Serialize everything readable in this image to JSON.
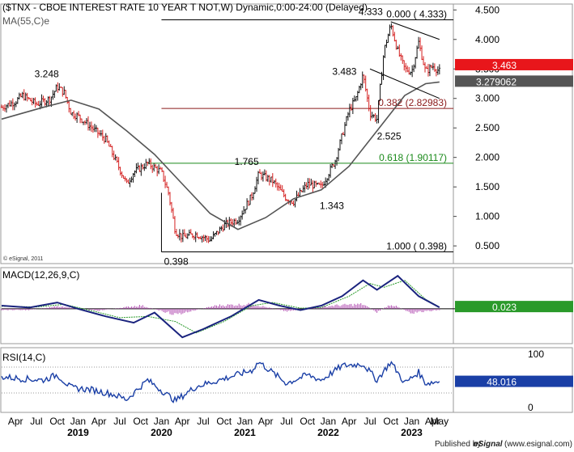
{
  "header": {
    "title": "($TNX - CBOE INTEREST RATE 10 YEAR T NOT,W) Dynamic,0:00-24:00 (Delayed)",
    "ma_label": "MA(55,C)e",
    "copyright": "© eSignal, 2011"
  },
  "footer": {
    "published_by": "Published by",
    "brand": "eSignal",
    "site": "(www.esignal.com)"
  },
  "chart_data": [
    {
      "type": "candlestick",
      "panel": "price",
      "title": "($TNX - CBOE INTEREST RATE 10 YEAR T NOT,W) Dynamic,0:00-24:00 (Delayed)",
      "ylim": [
        0.2,
        4.6
      ],
      "y_ticks": [
        "4.500",
        "4.000",
        "3.500",
        "3.000",
        "2.500",
        "2.000",
        "1.500",
        "1.000",
        "0.500"
      ],
      "y_tick_values": [
        4.5,
        4.0,
        3.5,
        3.0,
        2.5,
        2.0,
        1.5,
        1.0,
        0.5
      ],
      "x_labels": [
        "Apr",
        "Jul",
        "Oct",
        "Jan",
        "Apr",
        "Jul",
        "Oct",
        "Jan",
        "Apr",
        "Jul",
        "Oct",
        "Jan",
        "Apr",
        "Jul",
        "Oct",
        "Jan",
        "Apr",
        "Jul",
        "Oct",
        "Jan",
        "Apr",
        "May"
      ],
      "x_label_dates": [
        "2018-04",
        "2018-07",
        "2018-10",
        "2019-01",
        "2019-04",
        "2019-07",
        "2019-10",
        "2020-01",
        "2020-04",
        "2020-07",
        "2020-10",
        "2021-01",
        "2021-04",
        "2021-07",
        "2021-10",
        "2022-01",
        "2022-04",
        "2022-07",
        "2022-10",
        "2023-01",
        "2023-04",
        "2023-05"
      ],
      "years": [
        "2019",
        "2020",
        "2021",
        "2022",
        "2023"
      ],
      "year_dates": [
        "2019-01",
        "2020-01",
        "2021-01",
        "2022-01",
        "2023-01"
      ],
      "x_range": [
        "2018-02",
        "2023-07"
      ],
      "close_path": [
        {
          "t": "2018-02",
          "v": 2.85
        },
        {
          "t": "2018-04",
          "v": 2.95
        },
        {
          "t": "2018-05",
          "v": 3.05
        },
        {
          "t": "2018-07",
          "v": 2.9
        },
        {
          "t": "2018-09",
          "v": 3.0
        },
        {
          "t": "2018-10",
          "v": 3.2
        },
        {
          "t": "2018-11",
          "v": 3.1
        },
        {
          "t": "2018-12",
          "v": 2.75
        },
        {
          "t": "2019-01",
          "v": 2.7
        },
        {
          "t": "2019-03",
          "v": 2.5
        },
        {
          "t": "2019-05",
          "v": 2.3
        },
        {
          "t": "2019-06",
          "v": 2.05
        },
        {
          "t": "2019-08",
          "v": 1.55
        },
        {
          "t": "2019-09",
          "v": 1.75
        },
        {
          "t": "2019-11",
          "v": 1.9
        },
        {
          "t": "2020-01",
          "v": 1.75
        },
        {
          "t": "2020-02",
          "v": 1.4
        },
        {
          "t": "2020-03",
          "v": 0.75
        },
        {
          "t": "2020-04",
          "v": 0.65
        },
        {
          "t": "2020-06",
          "v": 0.7
        },
        {
          "t": "2020-08",
          "v": 0.6
        },
        {
          "t": "2020-10",
          "v": 0.85
        },
        {
          "t": "2020-12",
          "v": 0.95
        },
        {
          "t": "2021-02",
          "v": 1.35
        },
        {
          "t": "2021-03",
          "v": 1.72
        },
        {
          "t": "2021-05",
          "v": 1.6
        },
        {
          "t": "2021-07",
          "v": 1.3
        },
        {
          "t": "2021-08",
          "v": 1.25
        },
        {
          "t": "2021-10",
          "v": 1.55
        },
        {
          "t": "2021-12",
          "v": 1.5
        },
        {
          "t": "2022-02",
          "v": 1.95
        },
        {
          "t": "2022-04",
          "v": 2.8
        },
        {
          "t": "2022-05",
          "v": 3.0
        },
        {
          "t": "2022-06",
          "v": 3.4
        },
        {
          "t": "2022-07",
          "v": 2.75
        },
        {
          "t": "2022-08",
          "v": 2.65
        },
        {
          "t": "2022-09",
          "v": 3.8
        },
        {
          "t": "2022-10",
          "v": 4.25
        },
        {
          "t": "2022-11",
          "v": 3.8
        },
        {
          "t": "2022-12",
          "v": 3.5
        },
        {
          "t": "2023-01",
          "v": 3.45
        },
        {
          "t": "2023-02",
          "v": 3.95
        },
        {
          "t": "2023-03",
          "v": 3.45
        },
        {
          "t": "2023-04",
          "v": 3.55
        },
        {
          "t": "2023-05",
          "v": 3.46
        }
      ],
      "ma_path": [
        {
          "t": "2018-02",
          "v": 2.65
        },
        {
          "t": "2018-08",
          "v": 2.85
        },
        {
          "t": "2018-12",
          "v": 2.97
        },
        {
          "t": "2019-04",
          "v": 2.82
        },
        {
          "t": "2019-08",
          "v": 2.45
        },
        {
          "t": "2019-12",
          "v": 2.05
        },
        {
          "t": "2020-04",
          "v": 1.55
        },
        {
          "t": "2020-08",
          "v": 1.05
        },
        {
          "t": "2020-12",
          "v": 0.78
        },
        {
          "t": "2021-04",
          "v": 0.98
        },
        {
          "t": "2021-08",
          "v": 1.3
        },
        {
          "t": "2021-12",
          "v": 1.45
        },
        {
          "t": "2022-04",
          "v": 1.85
        },
        {
          "t": "2022-08",
          "v": 2.45
        },
        {
          "t": "2022-12",
          "v": 3.05
        },
        {
          "t": "2023-03",
          "v": 3.25
        },
        {
          "t": "2023-05",
          "v": 3.279062
        }
      ],
      "fib_lines": [
        {
          "label": "0.000 ( 4.333)",
          "value": 4.333,
          "color": "#000000",
          "from": "2020-01"
        },
        {
          "label": "0.382 (2.82983)",
          "value": 2.82983,
          "color": "#8b1a1a",
          "from": "2020-01"
        },
        {
          "label": "0.618 (1.90117)",
          "value": 1.90117,
          "color": "#1a8a1a",
          "from": "2019-11"
        },
        {
          "label": "1.000 ( 0.398)",
          "value": 0.398,
          "color": "#000000",
          "from": "2020-01"
        }
      ],
      "annotations": [
        {
          "text": "3.248",
          "t": "2018-10",
          "v": 3.248
        },
        {
          "text": "0.398",
          "t": "2020-03",
          "v": 0.398
        },
        {
          "text": "1.765",
          "t": "2021-03",
          "v": 1.765
        },
        {
          "text": "1.343",
          "t": "2021-12",
          "v": 1.343
        },
        {
          "text": "3.483",
          "t": "2022-06",
          "v": 3.483
        },
        {
          "text": "2.525",
          "t": "2022-08",
          "v": 2.525
        },
        {
          "text": "4.333",
          "t": "2022-10",
          "v": 4.333
        }
      ],
      "channel": [
        {
          "from": {
            "t": "2022-10",
            "v": 4.3
          },
          "to": {
            "t": "2023-05",
            "v": 4.0
          }
        },
        {
          "from": {
            "t": "2022-07",
            "v": 3.5
          },
          "to": {
            "t": "2023-05",
            "v": 3.0
          }
        }
      ],
      "value_labels": [
        {
          "text": "3.463",
          "value": 3.463,
          "color": "#e8161b"
        },
        {
          "text": "3.279062",
          "value": 3.279062,
          "color": "#555555"
        }
      ],
      "colors": {
        "up": "#111111",
        "down": "#d42020",
        "ma": "#555555"
      }
    },
    {
      "type": "line",
      "panel": "macd",
      "title": "MACD(12,26,9,C)",
      "x_range": [
        "2018-02",
        "2023-07"
      ],
      "zero_line": 0,
      "macd_path": [
        {
          "t": "2018-02",
          "v": 0.05
        },
        {
          "t": "2018-06",
          "v": 0.02
        },
        {
          "t": "2018-10",
          "v": 0.1
        },
        {
          "t": "2019-01",
          "v": 0.0
        },
        {
          "t": "2019-05",
          "v": -0.12
        },
        {
          "t": "2019-09",
          "v": -0.22
        },
        {
          "t": "2019-12",
          "v": -0.06
        },
        {
          "t": "2020-04",
          "v": -0.45
        },
        {
          "t": "2020-07",
          "v": -0.32
        },
        {
          "t": "2020-11",
          "v": -0.12
        },
        {
          "t": "2021-03",
          "v": 0.14
        },
        {
          "t": "2021-06",
          "v": 0.05
        },
        {
          "t": "2021-09",
          "v": -0.02
        },
        {
          "t": "2021-12",
          "v": 0.05
        },
        {
          "t": "2022-03",
          "v": 0.2
        },
        {
          "t": "2022-06",
          "v": 0.45
        },
        {
          "t": "2022-08",
          "v": 0.3
        },
        {
          "t": "2022-11",
          "v": 0.52
        },
        {
          "t": "2023-02",
          "v": 0.2
        },
        {
          "t": "2023-05",
          "v": 0.023
        }
      ],
      "signal_path": [
        {
          "t": "2018-02",
          "v": 0.04
        },
        {
          "t": "2018-07",
          "v": 0.03
        },
        {
          "t": "2018-11",
          "v": 0.07
        },
        {
          "t": "2019-03",
          "v": -0.03
        },
        {
          "t": "2019-07",
          "v": -0.14
        },
        {
          "t": "2019-11",
          "v": -0.12
        },
        {
          "t": "2020-03",
          "v": -0.2
        },
        {
          "t": "2020-06",
          "v": -0.38
        },
        {
          "t": "2020-10",
          "v": -0.2
        },
        {
          "t": "2021-02",
          "v": 0.05
        },
        {
          "t": "2021-05",
          "v": 0.1
        },
        {
          "t": "2021-09",
          "v": 0.01
        },
        {
          "t": "2021-12",
          "v": 0.02
        },
        {
          "t": "2022-04",
          "v": 0.2
        },
        {
          "t": "2022-07",
          "v": 0.4
        },
        {
          "t": "2022-09",
          "v": 0.34
        },
        {
          "t": "2022-12",
          "v": 0.45
        },
        {
          "t": "2023-03",
          "v": 0.15
        },
        {
          "t": "2023-05",
          "v": 0.03
        }
      ],
      "histogram_path": [
        {
          "t": "2018-06",
          "v": -0.02
        },
        {
          "t": "2018-10",
          "v": 0.04
        },
        {
          "t": "2019-04",
          "v": -0.03
        },
        {
          "t": "2019-10",
          "v": 0.06
        },
        {
          "t": "2020-03",
          "v": -0.1
        },
        {
          "t": "2020-09",
          "v": 0.06
        },
        {
          "t": "2021-02",
          "v": 0.08
        },
        {
          "t": "2021-07",
          "v": -0.04
        },
        {
          "t": "2022-02",
          "v": 0.06
        },
        {
          "t": "2022-06",
          "v": 0.08
        },
        {
          "t": "2022-08",
          "v": -0.06
        },
        {
          "t": "2022-10",
          "v": 0.08
        },
        {
          "t": "2023-01",
          "v": -0.07
        },
        {
          "t": "2023-05",
          "v": -0.02
        }
      ],
      "ylim": [
        -0.55,
        0.65
      ],
      "value_labels": [
        {
          "text": "0.023",
          "value": 0.023,
          "color": "#2a9a2a"
        }
      ],
      "colors": {
        "macd": "#1a237e",
        "signal": "#2a9a2a",
        "histogram": "#b04ab0"
      }
    },
    {
      "type": "line",
      "panel": "rsi",
      "title": "RSI(14,C)",
      "x_range": [
        "2018-02",
        "2023-07"
      ],
      "ylim": [
        0,
        100
      ],
      "y_ticks": [
        "100",
        "50",
        "0"
      ],
      "y_tick_values": [
        100,
        50,
        0
      ],
      "levels": [
        70,
        30
      ],
      "rsi_path": [
        {
          "t": "2018-02",
          "v": 55
        },
        {
          "t": "2018-05",
          "v": 52
        },
        {
          "t": "2018-08",
          "v": 50
        },
        {
          "t": "2018-10",
          "v": 58
        },
        {
          "t": "2018-12",
          "v": 38
        },
        {
          "t": "2019-03",
          "v": 35
        },
        {
          "t": "2019-06",
          "v": 28
        },
        {
          "t": "2019-08",
          "v": 20
        },
        {
          "t": "2019-11",
          "v": 50
        },
        {
          "t": "2020-03",
          "v": 18
        },
        {
          "t": "2020-06",
          "v": 40
        },
        {
          "t": "2020-10",
          "v": 52
        },
        {
          "t": "2021-02",
          "v": 65
        },
        {
          "t": "2021-03",
          "v": 78
        },
        {
          "t": "2021-07",
          "v": 45
        },
        {
          "t": "2021-10",
          "v": 58
        },
        {
          "t": "2021-12",
          "v": 50
        },
        {
          "t": "2022-03",
          "v": 72
        },
        {
          "t": "2022-06",
          "v": 75
        },
        {
          "t": "2022-08",
          "v": 50
        },
        {
          "t": "2022-10",
          "v": 78
        },
        {
          "t": "2022-12",
          "v": 45
        },
        {
          "t": "2023-02",
          "v": 62
        },
        {
          "t": "2023-03",
          "v": 45
        },
        {
          "t": "2023-05",
          "v": 48.016
        }
      ],
      "value_labels": [
        {
          "text": "48.016",
          "value": 48.016,
          "color": "#1a3fa6"
        }
      ],
      "colors": {
        "rsi": "#1a3fa6"
      }
    }
  ]
}
